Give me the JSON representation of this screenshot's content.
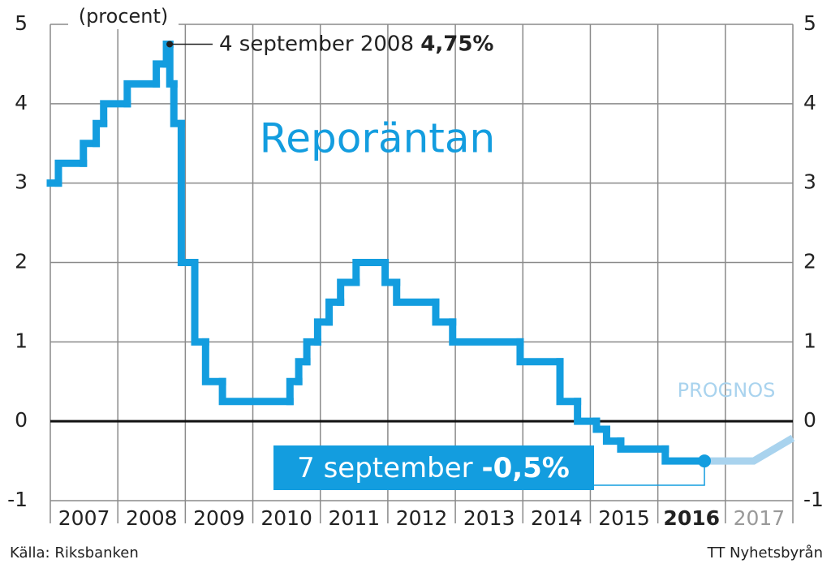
{
  "chart_data": {
    "type": "step-line",
    "title": "Reporäntan",
    "unit_label": "(procent)",
    "source": "Källa: Riksbanken",
    "credit": "TT Nyhetsbyrån",
    "xlim": [
      2007,
      2018
    ],
    "ylim": [
      -1,
      5
    ],
    "yticks": [
      -1,
      0,
      1,
      2,
      3,
      4,
      5
    ],
    "xgrid": [
      2007,
      2008,
      2009,
      2010,
      2011,
      2012,
      2013,
      2014,
      2015,
      2016,
      2017,
      2018
    ],
    "xticks": [
      {
        "value": 2007.5,
        "label": "2007"
      },
      {
        "value": 2008.5,
        "label": "2008"
      },
      {
        "value": 2009.5,
        "label": "2009"
      },
      {
        "value": 2010.5,
        "label": "2010"
      },
      {
        "value": 2011.5,
        "label": "2011"
      },
      {
        "value": 2012.5,
        "label": "2012"
      },
      {
        "value": 2013.5,
        "label": "2013"
      },
      {
        "value": 2014.5,
        "label": "2014"
      },
      {
        "value": 2015.5,
        "label": "2015"
      },
      {
        "value": 2016.5,
        "label": "2016",
        "style": "bold"
      },
      {
        "value": 2017.5,
        "label": "2017",
        "style": "muted"
      }
    ],
    "grid": true,
    "zero_line": true,
    "series": [
      {
        "color": "#139ddf",
        "step": true,
        "x": [
          2007.0,
          2007.12,
          2007.49,
          2007.68,
          2007.79,
          2008.14,
          2008.57,
          2008.72,
          2008.77,
          2008.83,
          2008.94,
          2009.14,
          2009.3,
          2009.55,
          2010.55,
          2010.68,
          2010.8,
          2010.96,
          2011.13,
          2011.3,
          2011.53,
          2011.96,
          2012.13,
          2012.71,
          2012.96,
          2013.96,
          2014.55,
          2014.81,
          2015.09,
          2015.24,
          2015.45,
          2016.11,
          2016.69
        ],
        "values": [
          3.0,
          3.25,
          3.5,
          3.75,
          4.0,
          4.25,
          4.5,
          4.75,
          4.25,
          3.75,
          2.0,
          1.0,
          0.5,
          0.25,
          0.5,
          0.75,
          1.0,
          1.25,
          1.5,
          1.75,
          2.0,
          1.75,
          1.5,
          1.25,
          1.0,
          0.75,
          0.25,
          0.0,
          -0.1,
          -0.25,
          -0.35,
          -0.5,
          -0.5
        ]
      },
      {
        "name": "PROGNOS",
        "color": "#a9d3ee",
        "step": false,
        "x": [
          2016.69,
          2017.42,
          2018.0
        ],
        "values": [
          -0.5,
          -0.5,
          -0.21
        ]
      }
    ],
    "annotations": [
      {
        "text": "4 september 2008",
        "value_label": "4,75%"
      },
      {
        "text": "7 september",
        "value_label": "-0,5%"
      }
    ]
  }
}
